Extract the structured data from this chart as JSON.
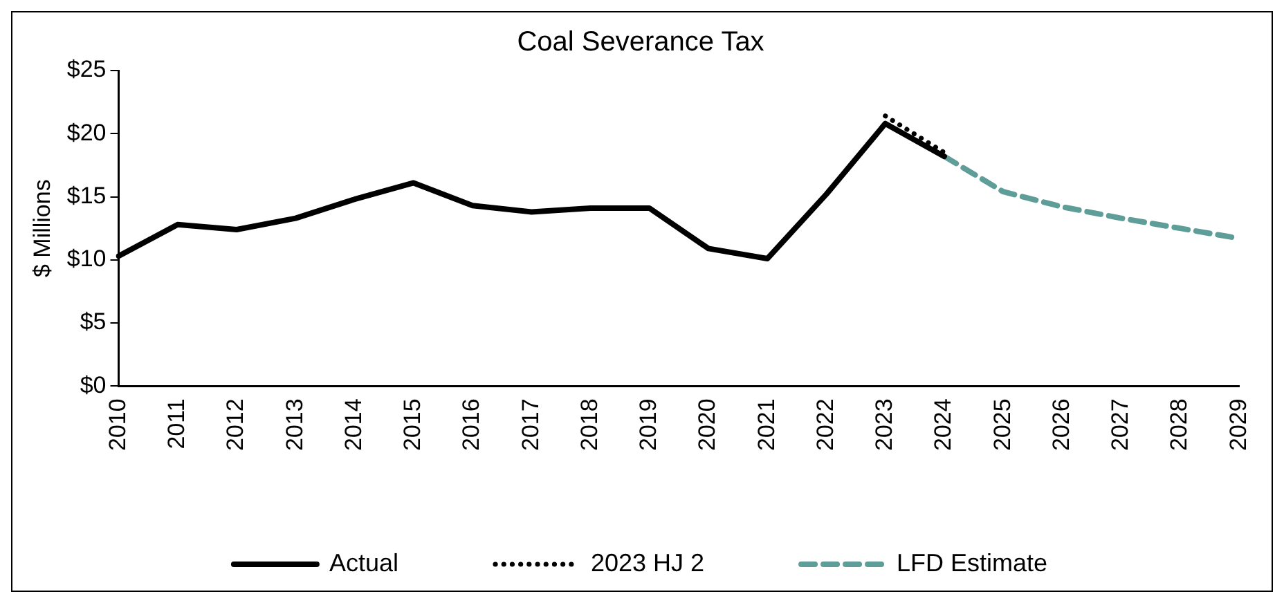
{
  "chart_data": {
    "type": "line",
    "title": "Coal Severance Tax",
    "ylabel": "$ Millions",
    "categories": [
      "2010",
      "2011",
      "2012",
      "2013",
      "2014",
      "2015",
      "2016",
      "2017",
      "2018",
      "2019",
      "2020",
      "2021",
      "2022",
      "2023",
      "2024",
      "2025",
      "2026",
      "2027",
      "2028",
      "2029"
    ],
    "series": [
      {
        "name": "Actual",
        "color": "#000000",
        "line_style": "solid",
        "values": [
          10.3,
          12.8,
          12.4,
          13.3,
          14.8,
          16.1,
          14.3,
          13.8,
          14.1,
          14.1,
          10.9,
          10.1,
          15.2,
          20.8,
          18.2,
          null,
          null,
          null,
          null,
          null
        ]
      },
      {
        "name": "2023 HJ 2",
        "color": "#000000",
        "line_style": "dotted",
        "values": [
          null,
          null,
          null,
          null,
          null,
          null,
          null,
          null,
          null,
          null,
          null,
          null,
          null,
          21.4,
          18.5,
          null,
          null,
          null,
          null,
          null
        ]
      },
      {
        "name": "LFD Estimate",
        "color": "#5f9e98",
        "line_style": "dashed",
        "values": [
          null,
          null,
          null,
          null,
          null,
          null,
          null,
          null,
          null,
          null,
          null,
          null,
          null,
          null,
          18.2,
          15.4,
          14.2,
          13.3,
          12.5,
          11.7
        ]
      }
    ],
    "ylim": [
      0,
      25
    ],
    "yticks": [
      {
        "value": 0,
        "label": "$0"
      },
      {
        "value": 5,
        "label": "$5"
      },
      {
        "value": 10,
        "label": "$10"
      },
      {
        "value": 15,
        "label": "$15"
      },
      {
        "value": 20,
        "label": "$20"
      },
      {
        "value": 25,
        "label": "$25"
      }
    ],
    "grid": false,
    "legend": "bottom",
    "marker": "none"
  }
}
